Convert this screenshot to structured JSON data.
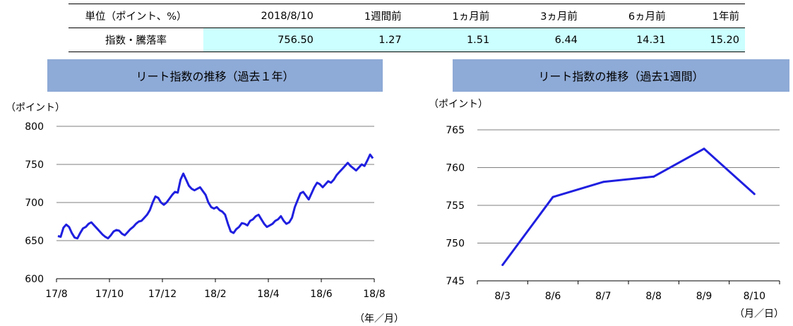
{
  "summary_table": {
    "header": [
      "単位（ポイント、%）",
      "2018/8/10",
      "1週間前",
      "1ヵ月前",
      "3ヵ月前",
      "6ヵ月前",
      "1年前"
    ],
    "row_label": "指数・騰落率",
    "values": [
      "756.50",
      "1.27",
      "1.51",
      "6.44",
      "14.31",
      "15.20"
    ]
  },
  "colors": {
    "line": "#1f1fe0",
    "header_bg": "#8eaad6",
    "cell_bg": "#ccffff",
    "grid": "#7f7f7f"
  },
  "chart_data": [
    {
      "type": "line",
      "title": "リート指数の推移（過去１年）",
      "ylabel": "（ポイント）",
      "xlabel": "（年／月）",
      "ylim": [
        600,
        800
      ],
      "yticks": [
        "800",
        "750",
        "700",
        "650",
        "600"
      ],
      "xticks": [
        "17/8",
        "17/10",
        "17/12",
        "18/2",
        "18/4",
        "18/6",
        "18/8"
      ],
      "grid": true,
      "series": [
        {
          "x_start": "2017/8/10",
          "x_end": "2018/8/10",
          "values": [
            656,
            655,
            667,
            671,
            668,
            660,
            654,
            653,
            660,
            666,
            668,
            672,
            674,
            670,
            666,
            662,
            658,
            655,
            653,
            657,
            662,
            664,
            663,
            659,
            657,
            661,
            665,
            668,
            672,
            675,
            676,
            680,
            684,
            690,
            700,
            708,
            706,
            700,
            697,
            700,
            705,
            710,
            714,
            713,
            730,
            738,
            730,
            722,
            718,
            716,
            718,
            720,
            715,
            710,
            700,
            694,
            692,
            694,
            690,
            688,
            684,
            672,
            662,
            660,
            665,
            668,
            673,
            672,
            670,
            676,
            678,
            682,
            684,
            678,
            672,
            668,
            670,
            672,
            676,
            678,
            682,
            676,
            672,
            674,
            680,
            694,
            703,
            712,
            714,
            709,
            704,
            712,
            720,
            726,
            724,
            720,
            724,
            728,
            726,
            730,
            736,
            740,
            744,
            748,
            752,
            748,
            745,
            742,
            746,
            750,
            748,
            755,
            763,
            758
          ]
        }
      ]
    },
    {
      "type": "line",
      "title": "リート指数の推移（過去1週間）",
      "ylabel": "（ポイント）",
      "xlabel": "（月／日）",
      "ylim": [
        745,
        765
      ],
      "yticks": [
        "765",
        "760",
        "755",
        "750",
        "745"
      ],
      "categories": [
        "8/3",
        "8/6",
        "8/7",
        "8/8",
        "8/9",
        "8/10"
      ],
      "grid": true,
      "series": [
        {
          "values": [
            747.1,
            756.1,
            758.1,
            758.8,
            762.5,
            756.5
          ]
        }
      ]
    }
  ]
}
